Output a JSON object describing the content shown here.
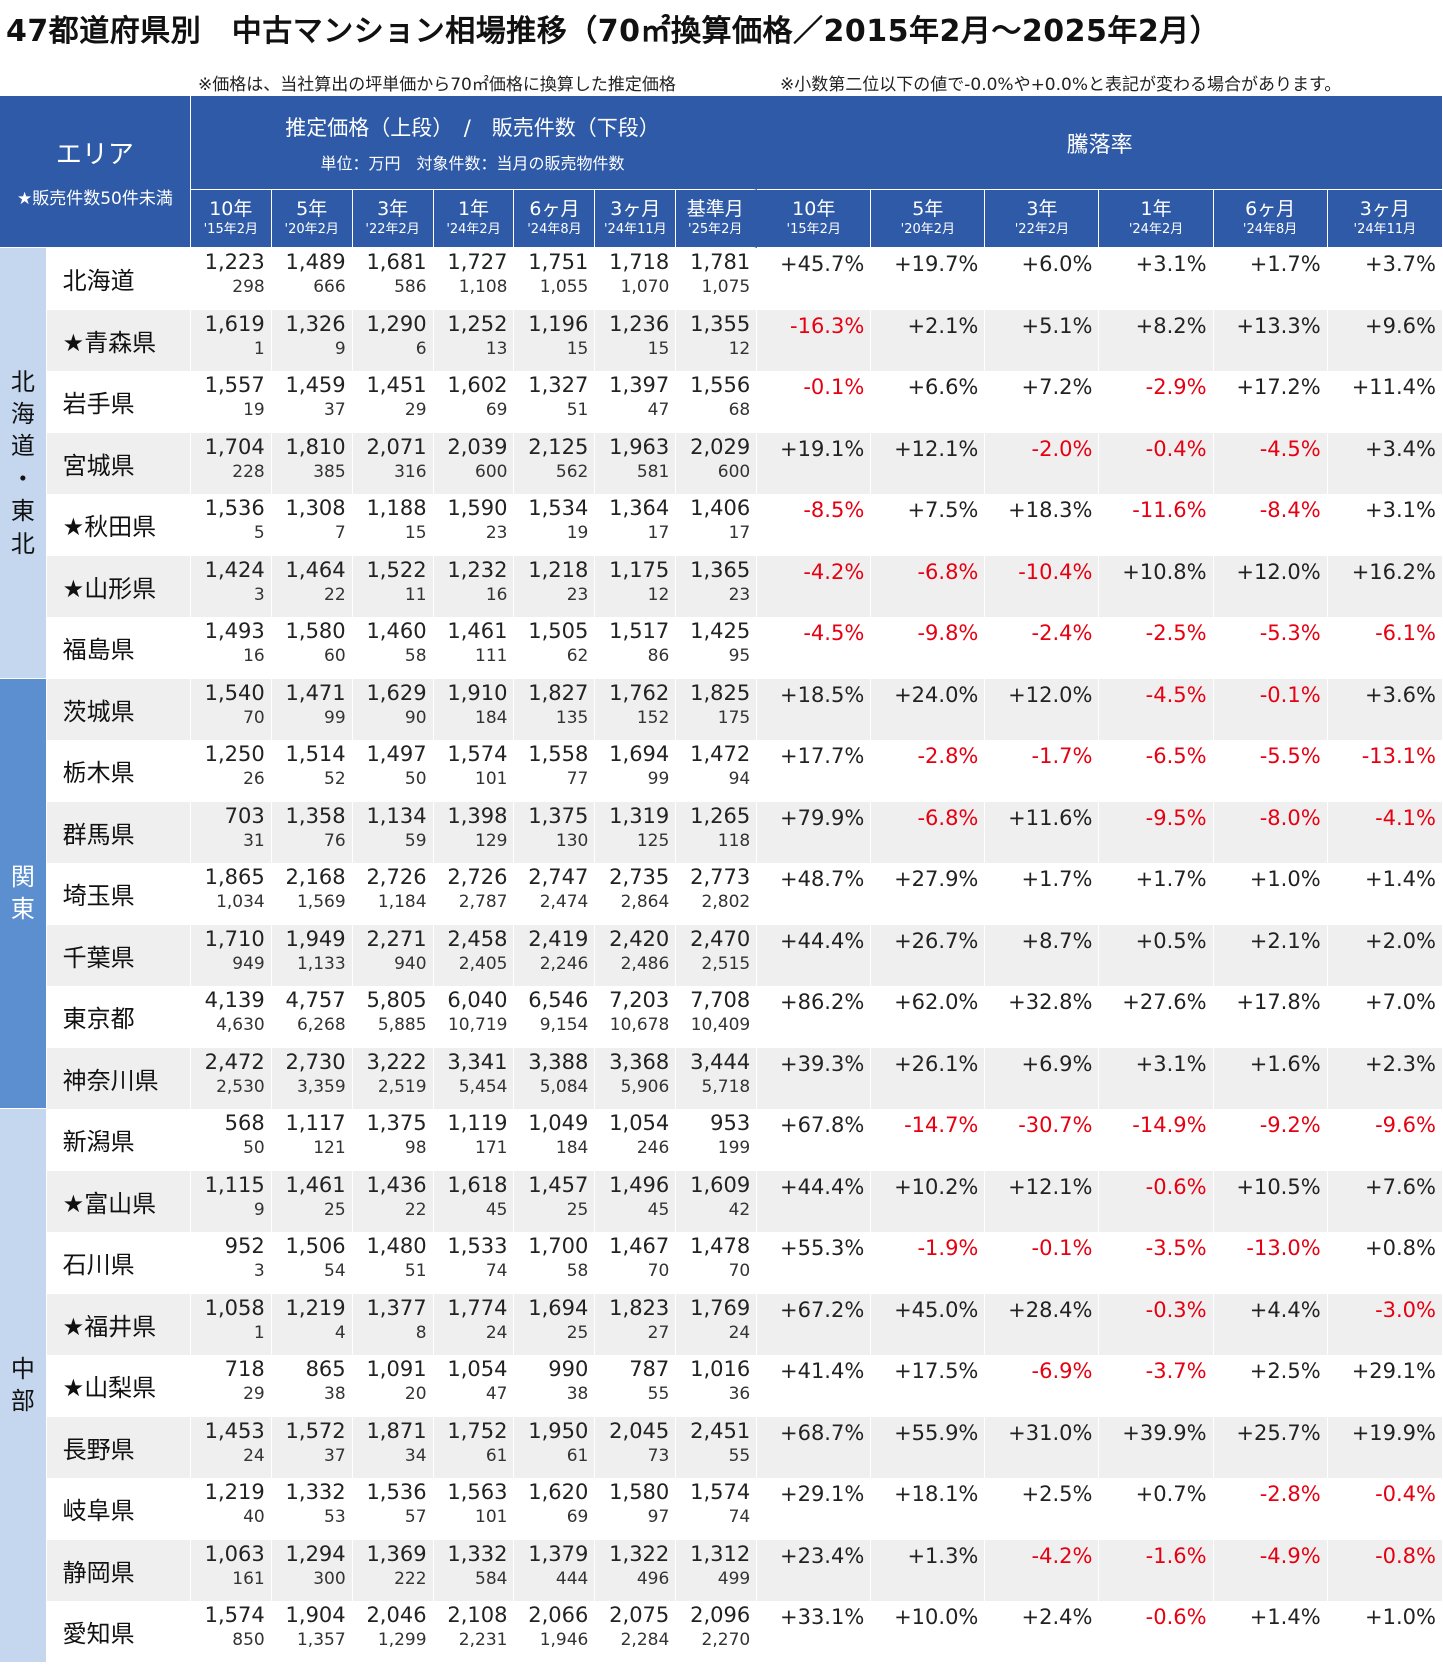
{
  "title": "47都道府県別　中古マンション相場推移（70㎡換算価格／2015年2月～2025年2月）",
  "notes": [
    "※価格は、当社算出の坪単価から70㎡価格に換算した推定価格",
    "※小数第二位以下の値で-0.0%や+0.0%と表記が変わる場合があります。"
  ],
  "header": {
    "area_label": "エリア",
    "area_note": "★販売件数50件未満",
    "price_group_label": "推定価格（上段）　/　販売件数（下段）",
    "price_group_unit": "単位：万円　対象件数：当月の販売物件数",
    "rate_group_label": "騰落率",
    "price_columns": [
      {
        "label": "10年",
        "sub": "'15年2月"
      },
      {
        "label": "5年",
        "sub": "'20年2月"
      },
      {
        "label": "3年",
        "sub": "'22年2月"
      },
      {
        "label": "1年",
        "sub": "'24年2月"
      },
      {
        "label": "6ヶ月",
        "sub": "'24年8月"
      },
      {
        "label": "3ヶ月",
        "sub": "'24年11月"
      },
      {
        "label": "基準月",
        "sub": "'25年2月"
      }
    ],
    "rate_columns": [
      {
        "label": "10年",
        "sub": "'15年2月"
      },
      {
        "label": "5年",
        "sub": "'20年2月"
      },
      {
        "label": "3年",
        "sub": "'22年2月"
      },
      {
        "label": "1年",
        "sub": "'24年2月"
      },
      {
        "label": "6ヶ月",
        "sub": "'24年8月"
      },
      {
        "label": "3ヶ月",
        "sub": "'24年11月"
      }
    ]
  },
  "regions": [
    {
      "name": "北海道・東北",
      "name_vertical": "北\n海\n道\n・\n東\n北",
      "rows": [
        {
          "pref": "北海道",
          "prices": [
            "1,223",
            "1,489",
            "1,681",
            "1,727",
            "1,751",
            "1,718",
            "1,781"
          ],
          "counts": [
            "298",
            "666",
            "586",
            "1,108",
            "1,055",
            "1,070",
            "1,075"
          ],
          "rates": [
            "+45.7%",
            "+19.7%",
            "+6.0%",
            "+3.1%",
            "+1.7%",
            "+3.7%"
          ]
        },
        {
          "pref": "★青森県",
          "prices": [
            "1,619",
            "1,326",
            "1,290",
            "1,252",
            "1,196",
            "1,236",
            "1,355"
          ],
          "counts": [
            "1",
            "9",
            "6",
            "13",
            "15",
            "15",
            "12"
          ],
          "rates": [
            "-16.3%",
            "+2.1%",
            "+5.1%",
            "+8.2%",
            "+13.3%",
            "+9.6%"
          ]
        },
        {
          "pref": "岩手県",
          "prices": [
            "1,557",
            "1,459",
            "1,451",
            "1,602",
            "1,327",
            "1,397",
            "1,556"
          ],
          "counts": [
            "19",
            "37",
            "29",
            "69",
            "51",
            "47",
            "68"
          ],
          "rates": [
            "-0.1%",
            "+6.6%",
            "+7.2%",
            "-2.9%",
            "+17.2%",
            "+11.4%"
          ]
        },
        {
          "pref": "宮城県",
          "prices": [
            "1,704",
            "1,810",
            "2,071",
            "2,039",
            "2,125",
            "1,963",
            "2,029"
          ],
          "counts": [
            "228",
            "385",
            "316",
            "600",
            "562",
            "581",
            "600"
          ],
          "rates": [
            "+19.1%",
            "+12.1%",
            "-2.0%",
            "-0.4%",
            "-4.5%",
            "+3.4%"
          ]
        },
        {
          "pref": "★秋田県",
          "prices": [
            "1,536",
            "1,308",
            "1,188",
            "1,590",
            "1,534",
            "1,364",
            "1,406"
          ],
          "counts": [
            "5",
            "7",
            "15",
            "23",
            "19",
            "17",
            "17"
          ],
          "rates": [
            "-8.5%",
            "+7.5%",
            "+18.3%",
            "-11.6%",
            "-8.4%",
            "+3.1%"
          ]
        },
        {
          "pref": "★山形県",
          "prices": [
            "1,424",
            "1,464",
            "1,522",
            "1,232",
            "1,218",
            "1,175",
            "1,365"
          ],
          "counts": [
            "3",
            "22",
            "11",
            "16",
            "23",
            "12",
            "23"
          ],
          "rates": [
            "-4.2%",
            "-6.8%",
            "-10.4%",
            "+10.8%",
            "+12.0%",
            "+16.2%"
          ]
        },
        {
          "pref": "福島県",
          "prices": [
            "1,493",
            "1,580",
            "1,460",
            "1,461",
            "1,505",
            "1,517",
            "1,425"
          ],
          "counts": [
            "16",
            "60",
            "58",
            "111",
            "62",
            "86",
            "95"
          ],
          "rates": [
            "-4.5%",
            "-9.8%",
            "-2.4%",
            "-2.5%",
            "-5.3%",
            "-6.1%"
          ]
        }
      ]
    },
    {
      "name": "関東",
      "name_vertical": "関\n東",
      "rows": [
        {
          "pref": "茨城県",
          "prices": [
            "1,540",
            "1,471",
            "1,629",
            "1,910",
            "1,827",
            "1,762",
            "1,825"
          ],
          "counts": [
            "70",
            "99",
            "90",
            "184",
            "135",
            "152",
            "175"
          ],
          "rates": [
            "+18.5%",
            "+24.0%",
            "+12.0%",
            "-4.5%",
            "-0.1%",
            "+3.6%"
          ]
        },
        {
          "pref": "栃木県",
          "prices": [
            "1,250",
            "1,514",
            "1,497",
            "1,574",
            "1,558",
            "1,694",
            "1,472"
          ],
          "counts": [
            "26",
            "52",
            "50",
            "101",
            "77",
            "99",
            "94"
          ],
          "rates": [
            "+17.7%",
            "-2.8%",
            "-1.7%",
            "-6.5%",
            "-5.5%",
            "-13.1%"
          ]
        },
        {
          "pref": "群馬県",
          "prices": [
            "703",
            "1,358",
            "1,134",
            "1,398",
            "1,375",
            "1,319",
            "1,265"
          ],
          "counts": [
            "31",
            "76",
            "59",
            "129",
            "130",
            "125",
            "118"
          ],
          "rates": [
            "+79.9%",
            "-6.8%",
            "+11.6%",
            "-9.5%",
            "-8.0%",
            "-4.1%"
          ]
        },
        {
          "pref": "埼玉県",
          "prices": [
            "1,865",
            "2,168",
            "2,726",
            "2,726",
            "2,747",
            "2,735",
            "2,773"
          ],
          "counts": [
            "1,034",
            "1,569",
            "1,184",
            "2,787",
            "2,474",
            "2,864",
            "2,802"
          ],
          "rates": [
            "+48.7%",
            "+27.9%",
            "+1.7%",
            "+1.7%",
            "+1.0%",
            "+1.4%"
          ]
        },
        {
          "pref": "千葉県",
          "prices": [
            "1,710",
            "1,949",
            "2,271",
            "2,458",
            "2,419",
            "2,420",
            "2,470"
          ],
          "counts": [
            "949",
            "1,133",
            "940",
            "2,405",
            "2,246",
            "2,486",
            "2,515"
          ],
          "rates": [
            "+44.4%",
            "+26.7%",
            "+8.7%",
            "+0.5%",
            "+2.1%",
            "+2.0%"
          ]
        },
        {
          "pref": "東京都",
          "prices": [
            "4,139",
            "4,757",
            "5,805",
            "6,040",
            "6,546",
            "7,203",
            "7,708"
          ],
          "counts": [
            "4,630",
            "6,268",
            "5,885",
            "10,719",
            "9,154",
            "10,678",
            "10,409"
          ],
          "rates": [
            "+86.2%",
            "+62.0%",
            "+32.8%",
            "+27.6%",
            "+17.8%",
            "+7.0%"
          ]
        },
        {
          "pref": "神奈川県",
          "prices": [
            "2,472",
            "2,730",
            "3,222",
            "3,341",
            "3,388",
            "3,368",
            "3,444"
          ],
          "counts": [
            "2,530",
            "3,359",
            "2,519",
            "5,454",
            "5,084",
            "5,906",
            "5,718"
          ],
          "rates": [
            "+39.3%",
            "+26.1%",
            "+6.9%",
            "+3.1%",
            "+1.6%",
            "+2.3%"
          ]
        }
      ]
    },
    {
      "name": "中部",
      "name_vertical": "中\n部",
      "rows": [
        {
          "pref": "新潟県",
          "prices": [
            "568",
            "1,117",
            "1,375",
            "1,119",
            "1,049",
            "1,054",
            "953"
          ],
          "counts": [
            "50",
            "121",
            "98",
            "171",
            "184",
            "246",
            "199"
          ],
          "rates": [
            "+67.8%",
            "-14.7%",
            "-30.7%",
            "-14.9%",
            "-9.2%",
            "-9.6%"
          ]
        },
        {
          "pref": "★富山県",
          "prices": [
            "1,115",
            "1,461",
            "1,436",
            "1,618",
            "1,457",
            "1,496",
            "1,609"
          ],
          "counts": [
            "9",
            "25",
            "22",
            "45",
            "25",
            "45",
            "42"
          ],
          "rates": [
            "+44.4%",
            "+10.2%",
            "+12.1%",
            "-0.6%",
            "+10.5%",
            "+7.6%"
          ]
        },
        {
          "pref": "石川県",
          "prices": [
            "952",
            "1,506",
            "1,480",
            "1,533",
            "1,700",
            "1,467",
            "1,478"
          ],
          "counts": [
            "3",
            "54",
            "51",
            "74",
            "58",
            "70",
            "70"
          ],
          "rates": [
            "+55.3%",
            "-1.9%",
            "-0.1%",
            "-3.5%",
            "-13.0%",
            "+0.8%"
          ]
        },
        {
          "pref": "★福井県",
          "prices": [
            "1,058",
            "1,219",
            "1,377",
            "1,774",
            "1,694",
            "1,823",
            "1,769"
          ],
          "counts": [
            "1",
            "4",
            "8",
            "24",
            "25",
            "27",
            "24"
          ],
          "rates": [
            "+67.2%",
            "+45.0%",
            "+28.4%",
            "-0.3%",
            "+4.4%",
            "-3.0%"
          ]
        },
        {
          "pref": "★山梨県",
          "prices": [
            "718",
            "865",
            "1,091",
            "1,054",
            "990",
            "787",
            "1,016"
          ],
          "counts": [
            "29",
            "38",
            "20",
            "47",
            "38",
            "55",
            "36"
          ],
          "rates": [
            "+41.4%",
            "+17.5%",
            "-6.9%",
            "-3.7%",
            "+2.5%",
            "+29.1%"
          ]
        },
        {
          "pref": "長野県",
          "prices": [
            "1,453",
            "1,572",
            "1,871",
            "1,752",
            "1,950",
            "2,045",
            "2,451"
          ],
          "counts": [
            "24",
            "37",
            "34",
            "61",
            "61",
            "73",
            "55"
          ],
          "rates": [
            "+68.7%",
            "+55.9%",
            "+31.0%",
            "+39.9%",
            "+25.7%",
            "+19.9%"
          ]
        },
        {
          "pref": "岐阜県",
          "prices": [
            "1,219",
            "1,332",
            "1,536",
            "1,563",
            "1,620",
            "1,580",
            "1,574"
          ],
          "counts": [
            "40",
            "53",
            "57",
            "101",
            "69",
            "97",
            "74"
          ],
          "rates": [
            "+29.1%",
            "+18.1%",
            "+2.5%",
            "+0.7%",
            "-2.8%",
            "-0.4%"
          ]
        },
        {
          "pref": "静岡県",
          "prices": [
            "1,063",
            "1,294",
            "1,369",
            "1,332",
            "1,379",
            "1,322",
            "1,312"
          ],
          "counts": [
            "161",
            "300",
            "222",
            "584",
            "444",
            "496",
            "499"
          ],
          "rates": [
            "+23.4%",
            "+1.3%",
            "-4.2%",
            "-1.6%",
            "-4.9%",
            "-0.8%"
          ]
        },
        {
          "pref": "愛知県",
          "prices": [
            "1,574",
            "1,904",
            "2,046",
            "2,108",
            "2,066",
            "2,075",
            "2,096"
          ],
          "counts": [
            "850",
            "1,357",
            "1,299",
            "2,231",
            "1,946",
            "2,284",
            "2,270"
          ],
          "rates": [
            "+33.1%",
            "+10.0%",
            "+2.4%",
            "-0.6%",
            "+1.4%",
            "+1.0%"
          ]
        }
      ]
    }
  ],
  "colors": {
    "header_bg": "#2e5aa8",
    "region_light": "#c5d7ee",
    "region_dark": "#5b8fd0",
    "negative": "#e60012",
    "row_alt": "#efefef"
  }
}
